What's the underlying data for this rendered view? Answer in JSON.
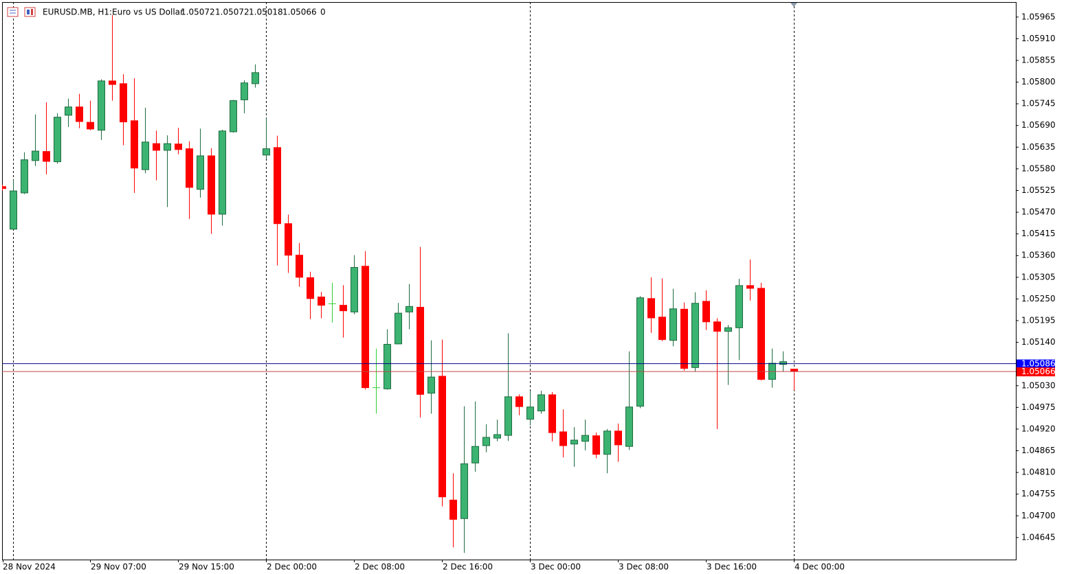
{
  "header": {
    "symbol": "EURUSD.MB, H1:",
    "description": "Euro vs US Dollar",
    "extra": "0"
  },
  "chart_data": {
    "type": "candlestick",
    "categories": [
      "28 Nov 2024",
      null,
      null,
      null,
      null,
      null,
      null,
      null,
      "29 Nov 07:00",
      null,
      null,
      null,
      null,
      null,
      null,
      null,
      "29 Nov 15:00",
      null,
      null,
      null,
      null,
      null,
      null,
      null,
      "2 Dec 00:00",
      null,
      null,
      null,
      null,
      null,
      null,
      null,
      "2 Dec 08:00",
      null,
      null,
      null,
      null,
      null,
      null,
      null,
      "2 Dec 16:00",
      null,
      null,
      null,
      null,
      null,
      null,
      null,
      "3 Dec 00:00",
      null,
      null,
      null,
      null,
      null,
      null,
      null,
      "3 Dec 08:00",
      null,
      null,
      null,
      null,
      null,
      null,
      null,
      "3 Dec 16:00",
      null,
      null,
      null,
      null,
      null,
      null,
      null,
      "4 Dec 00:00"
    ],
    "open": [
      1.05535,
      1.05427,
      1.05519,
      1.05601,
      1.05624,
      1.05598,
      1.05716,
      1.05737,
      1.05698,
      1.05678,
      1.05803,
      1.05796,
      1.05702,
      1.05578,
      1.05644,
      1.05627,
      1.05643,
      1.05631,
      1.05528,
      1.05613,
      1.05465,
      1.05674,
      1.05755,
      1.05796,
      1.05615,
      1.05634,
      1.05441,
      1.05361,
      1.05304,
      1.05255,
      1.05236,
      1.05234,
      1.05217,
      1.05333,
      1.05023,
      1.05022,
      1.05136,
      1.05217,
      1.05229,
      1.05011,
      1.05054,
      1.0474,
      1.04693,
      1.04834,
      1.04878,
      1.04897,
      1.04904,
      1.05002,
      1.04945,
      1.04966,
      1.05007,
      1.04913,
      1.04882,
      1.04889,
      1.04903,
      1.04856,
      1.04915,
      1.04876,
      1.04978,
      1.05251,
      1.05204,
      1.05145,
      1.05224,
      1.05076,
      1.05244,
      1.05192,
      1.05168,
      1.05177,
      1.05284,
      1.05277,
      1.05046,
      1.05084,
      1.05072
    ],
    "high": [
      1.0554,
      1.05552,
      1.05622,
      1.05718,
      1.05749,
      1.05721,
      1.05758,
      1.0577,
      1.05753,
      1.05807,
      1.0597,
      1.0582,
      1.0581,
      1.05735,
      1.05677,
      1.05665,
      1.05684,
      1.0565,
      1.05682,
      1.05632,
      1.05679,
      1.05755,
      1.05805,
      1.05845,
      1.05709,
      1.05664,
      1.05464,
      1.05392,
      1.05319,
      1.05268,
      1.05291,
      1.05285,
      1.05361,
      1.05371,
      1.05124,
      1.05173,
      1.0524,
      1.05288,
      1.05382,
      1.05145,
      1.05147,
      1.04808,
      1.04978,
      1.0499,
      1.04932,
      1.04944,
      1.05163,
      1.05008,
      1.05017,
      1.05017,
      1.05014,
      1.0497,
      1.04925,
      1.04944,
      1.04911,
      1.0492,
      1.04934,
      1.05117,
      1.05257,
      1.05305,
      1.05302,
      1.05276,
      1.05241,
      1.05267,
      1.05272,
      1.05201,
      1.05184,
      1.05301,
      1.0535,
      1.05291,
      1.05124,
      1.05117,
      1.05072
    ],
    "low": [
      1.05525,
      1.05427,
      1.05516,
      1.05587,
      1.05566,
      1.05593,
      1.05686,
      1.05683,
      1.05678,
      1.05653,
      1.05753,
      1.0564,
      1.05519,
      1.05569,
      1.05551,
      1.05483,
      1.05617,
      1.05453,
      1.05507,
      1.05415,
      1.05436,
      1.05672,
      1.05721,
      1.05786,
      1.05605,
      1.05335,
      1.05316,
      1.05281,
      1.05199,
      1.05201,
      1.0519,
      1.05152,
      1.05211,
      1.0502,
      1.04959,
      1.0502,
      1.05135,
      1.05173,
      1.04949,
      1.04959,
      1.04724,
      1.0462,
      1.04606,
      1.04812,
      1.04861,
      1.04889,
      1.0489,
      1.04955,
      1.04929,
      1.04959,
      1.04889,
      1.04848,
      1.04824,
      1.04866,
      1.04846,
      1.04808,
      1.04837,
      1.04867,
      1.04973,
      1.05164,
      1.05143,
      1.0513,
      1.05068,
      1.05065,
      1.05171,
      1.0492,
      1.05032,
      1.05095,
      1.05246,
      1.05043,
      1.05025,
      1.05066,
      1.05018
    ],
    "close": [
      1.0553,
      1.05524,
      1.05603,
      1.05625,
      1.05599,
      1.05711,
      1.05737,
      1.057,
      1.05681,
      1.05803,
      1.05794,
      1.05699,
      1.05582,
      1.05648,
      1.05627,
      1.05644,
      1.05629,
      1.05533,
      1.05613,
      1.05465,
      1.05676,
      1.05753,
      1.05798,
      1.05824,
      1.05631,
      1.05441,
      1.05361,
      1.05305,
      1.05251,
      1.05234,
      1.05238,
      1.0522,
      1.0533,
      1.05025,
      1.05025,
      1.05135,
      1.05214,
      1.05231,
      1.05008,
      1.05052,
      1.04748,
      1.04691,
      1.04832,
      1.04876,
      1.04899,
      1.04906,
      1.05002,
      1.04977,
      1.04976,
      1.05007,
      1.04911,
      1.04878,
      1.04892,
      1.04904,
      1.04856,
      1.04915,
      1.0488,
      1.04976,
      1.05253,
      1.05202,
      1.05147,
      1.05225,
      1.05074,
      1.05239,
      1.05192,
      1.05168,
      1.05177,
      1.05284,
      1.05277,
      1.05046,
      1.05087,
      1.05091,
      1.05066
    ],
    "up_color": "#3cb371",
    "down_color": "#ff0000",
    "doji_color": "#32cd32",
    "ask": 1.05086,
    "ask_color": "#0000ff",
    "bid": 1.05066,
    "bid_color": "#ff0000",
    "ylim": [
      1.04589,
      1.06003
    ],
    "yticks": [
      1.05965,
      {
        "value": 1.0591,
        "label": "1.05910"
      },
      1.05855,
      {
        "value": 1.058,
        "label": "1.05800"
      },
      1.05745,
      {
        "value": 1.0569,
        "label": "1.05690"
      },
      1.05635,
      {
        "value": 1.0558,
        "label": "1.05580"
      },
      1.05525,
      {
        "value": 1.0547,
        "label": "1.05470"
      },
      1.05415,
      {
        "value": 1.0536,
        "label": "1.05360"
      },
      1.05305,
      {
        "value": 1.0525,
        "label": "1.05250"
      },
      1.05195,
      {
        "value": 1.0514,
        "label": "1.05140"
      },
      1.05085,
      {
        "value": 1.0503,
        "label": "1.05030"
      },
      1.04975,
      {
        "value": 1.0492,
        "label": "1.04920"
      },
      1.04865,
      {
        "value": 1.0481,
        "label": "1.04810"
      },
      1.04755,
      {
        "value": 1.047,
        "label": "1.04700"
      },
      1.04645
    ]
  }
}
